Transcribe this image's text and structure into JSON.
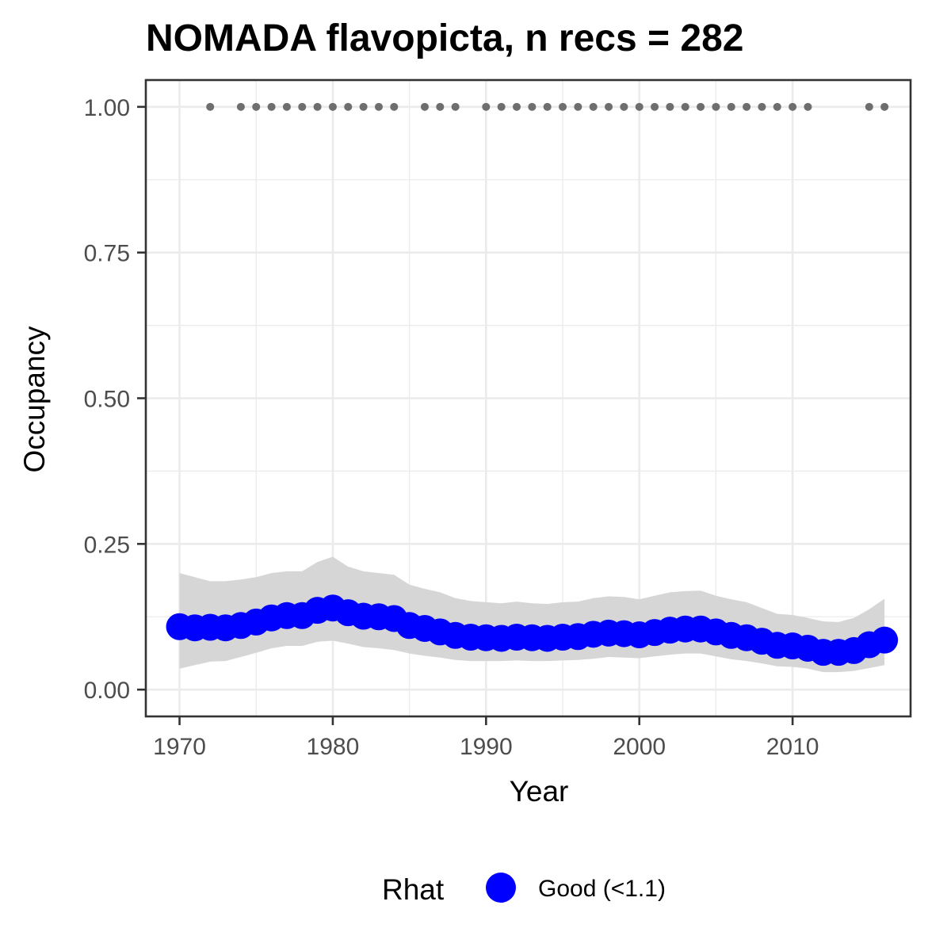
{
  "chart_data": {
    "type": "line",
    "title": "NOMADA flavopicta, n recs = 282",
    "xlabel": "Year",
    "ylabel": "Occupancy",
    "xlim": [
      1967.8,
      2017.7
    ],
    "ylim": [
      -0.046,
      1.046
    ],
    "x_ticks": [
      1970,
      1980,
      1990,
      2000,
      2010
    ],
    "x_tick_labels": [
      "1970",
      "1980",
      "1990",
      "2000",
      "2010"
    ],
    "y_ticks": [
      0,
      0.25,
      0.5,
      0.75,
      1
    ],
    "y_tick_labels": [
      "0.00",
      "0.25",
      "0.50",
      "0.75",
      "1.00"
    ],
    "grid": true,
    "legend": {
      "position": "bottom",
      "title": "Rhat",
      "entries": [
        {
          "label": "Good (<1.1)",
          "color": "#0000ff"
        }
      ]
    },
    "colors": {
      "line": "#0000ff",
      "ribbon": "#d6d6d6",
      "records": "#6e6e6e",
      "grid": "#ebebeb",
      "panel_border": "#333333"
    },
    "series": [
      {
        "x": [
          1970,
          1971,
          1972,
          1973,
          1974,
          1975,
          1976,
          1977,
          1978,
          1979,
          1980,
          1981,
          1982,
          1983,
          1984,
          1985,
          1986,
          1987,
          1988,
          1989,
          1990,
          1991,
          1992,
          1993,
          1994,
          1995,
          1996,
          1997,
          1998,
          1999,
          2000,
          2001,
          2002,
          2003,
          2004,
          2005,
          2006,
          2007,
          2008,
          2009,
          2010,
          2011,
          2012,
          2013,
          2014,
          2015,
          2016
        ],
        "y": [
          0.108,
          0.106,
          0.107,
          0.106,
          0.11,
          0.116,
          0.123,
          0.127,
          0.127,
          0.136,
          0.14,
          0.132,
          0.126,
          0.125,
          0.122,
          0.11,
          0.105,
          0.099,
          0.093,
          0.09,
          0.089,
          0.088,
          0.09,
          0.089,
          0.088,
          0.09,
          0.091,
          0.095,
          0.097,
          0.096,
          0.094,
          0.098,
          0.102,
          0.104,
          0.104,
          0.099,
          0.093,
          0.089,
          0.083,
          0.076,
          0.075,
          0.071,
          0.064,
          0.064,
          0.067,
          0.077,
          0.085
        ],
        "lower": [
          0.036,
          0.042,
          0.048,
          0.049,
          0.056,
          0.063,
          0.071,
          0.075,
          0.075,
          0.082,
          0.084,
          0.079,
          0.073,
          0.071,
          0.068,
          0.062,
          0.058,
          0.055,
          0.051,
          0.049,
          0.049,
          0.049,
          0.05,
          0.049,
          0.049,
          0.05,
          0.051,
          0.053,
          0.056,
          0.055,
          0.054,
          0.057,
          0.06,
          0.062,
          0.062,
          0.057,
          0.052,
          0.049,
          0.045,
          0.04,
          0.039,
          0.036,
          0.03,
          0.03,
          0.032,
          0.037,
          0.042
        ],
        "upper": [
          0.2,
          0.193,
          0.186,
          0.186,
          0.189,
          0.193,
          0.2,
          0.203,
          0.203,
          0.219,
          0.228,
          0.211,
          0.203,
          0.2,
          0.197,
          0.18,
          0.173,
          0.167,
          0.157,
          0.152,
          0.15,
          0.148,
          0.151,
          0.148,
          0.147,
          0.15,
          0.151,
          0.157,
          0.16,
          0.159,
          0.155,
          0.161,
          0.167,
          0.169,
          0.17,
          0.161,
          0.155,
          0.15,
          0.14,
          0.13,
          0.128,
          0.123,
          0.117,
          0.116,
          0.123,
          0.138,
          0.156
        ]
      }
    ],
    "record_years": [
      1972,
      1974,
      1975,
      1976,
      1977,
      1978,
      1979,
      1980,
      1981,
      1982,
      1983,
      1984,
      1986,
      1987,
      1988,
      1990,
      1991,
      1992,
      1993,
      1994,
      1995,
      1996,
      1997,
      1998,
      1999,
      2000,
      2001,
      2002,
      2003,
      2004,
      2005,
      2006,
      2007,
      2008,
      2009,
      2010,
      2011,
      2015,
      2016
    ],
    "record_value": 1.0
  }
}
